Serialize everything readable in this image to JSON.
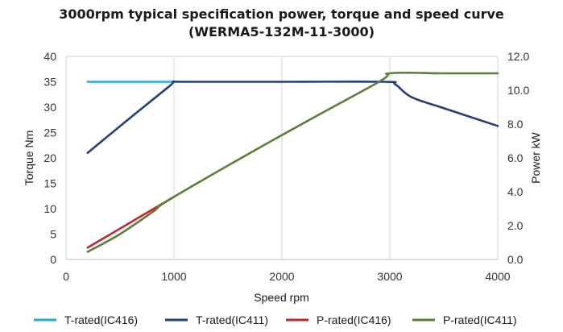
{
  "chart_data": {
    "type": "line",
    "title_line1": "3000rpm typical specification power, torque and speed curve",
    "title_line2": "(WERMA5-132M-11-3000)",
    "xlabel": "Speed rpm",
    "ylabel_left": "Torque Nm",
    "ylabel_right": "Power kW",
    "xlim": [
      0,
      4000
    ],
    "ylim_left": [
      0,
      40
    ],
    "ylim_right": [
      0,
      12
    ],
    "x_ticks": [
      "0",
      "1000",
      "2000",
      "3000",
      "4000"
    ],
    "y_left_ticks": [
      "0",
      "5",
      "10",
      "15",
      "20",
      "25",
      "30",
      "35",
      "40"
    ],
    "y_right_ticks": [
      "0.0",
      "2.0",
      "4.0",
      "6.0",
      "8.0",
      "10.0",
      "12.0"
    ],
    "grid": "vertical",
    "legend_position": "bottom",
    "series": [
      {
        "name": "T-rated(IC416)",
        "axis": "left",
        "color": "#2aa7df",
        "points": [
          [
            200,
            35
          ],
          [
            1000,
            35
          ]
        ]
      },
      {
        "name": "T-rated(IC411)",
        "axis": "left",
        "color": "#243d7c",
        "points": [
          [
            200,
            21
          ],
          [
            600,
            28
          ],
          [
            950,
            34
          ],
          [
            1000,
            35
          ],
          [
            1100,
            35
          ],
          [
            2000,
            35
          ],
          [
            2950,
            35
          ],
          [
            3050,
            34.5
          ],
          [
            3200,
            32
          ],
          [
            3500,
            29.8
          ],
          [
            4000,
            26.3
          ]
        ]
      },
      {
        "name": "P-rated(IC416)",
        "axis": "right",
        "color": "#c0282f",
        "points": [
          [
            200,
            0.7
          ],
          [
            600,
            2.2
          ],
          [
            1000,
            3.7
          ]
        ]
      },
      {
        "name": "P-rated(IC411)",
        "axis": "right",
        "color": "#5b7f35",
        "points": [
          [
            200,
            0.45
          ],
          [
            500,
            1.5
          ],
          [
            800,
            2.8
          ],
          [
            1000,
            3.7
          ],
          [
            2000,
            7.35
          ],
          [
            2900,
            10.5
          ],
          [
            3000,
            11.0
          ],
          [
            3500,
            11.0
          ],
          [
            4000,
            11.0
          ]
        ]
      }
    ]
  }
}
